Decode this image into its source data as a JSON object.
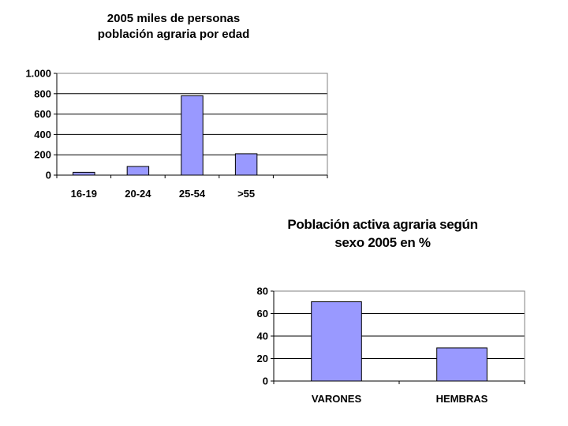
{
  "chart_data": [
    {
      "type": "bar",
      "title_lines": [
        "2005 miles de personas",
        "población agraria por edad"
      ],
      "categories": [
        "16-19",
        "20-24",
        "25-54",
        ">55",
        ""
      ],
      "values": [
        28,
        85,
        780,
        210,
        null
      ],
      "ylim": [
        0,
        1000
      ],
      "yticks": [
        0,
        200,
        400,
        600,
        800,
        1000
      ],
      "ytick_labels": [
        "0",
        "200",
        "400",
        "600",
        "800",
        "1.000"
      ],
      "grid": true,
      "bar_color": "#9999ff"
    },
    {
      "type": "bar",
      "title_lines": [
        "Población activa agraria según",
        "sexo 2005 en %"
      ],
      "categories": [
        "VARONES",
        "HEMBRAS"
      ],
      "values": [
        70.5,
        29.5
      ],
      "ylim": [
        0,
        80
      ],
      "yticks": [
        0,
        20,
        40,
        60,
        80
      ],
      "ytick_labels": [
        "0",
        "20",
        "40",
        "60",
        "80"
      ],
      "grid": true,
      "bar_color": "#9999ff"
    }
  ]
}
